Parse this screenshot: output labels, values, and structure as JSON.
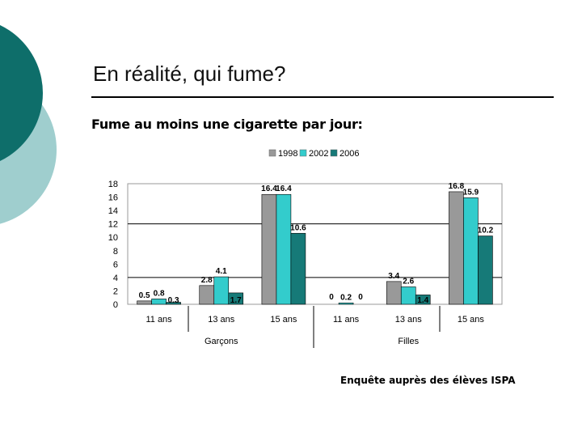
{
  "slide": {
    "title": "En réalité, qui fume?",
    "subtitle": "Fume au moins une cigarette par jour:",
    "source": "Enquête auprès des élèves ISPA"
  },
  "colors": {
    "decor_dark": "#0E6E6A",
    "decor_light": "#9FCECE"
  },
  "chart_data": {
    "type": "bar",
    "categories": [
      "11 ans",
      "13 ans",
      "15 ans",
      "11 ans",
      "13 ans",
      "15 ans"
    ],
    "groups": [
      {
        "label": "Garçons",
        "categories": [
          0,
          1,
          2
        ]
      },
      {
        "label": "Filles",
        "categories": [
          3,
          4,
          5
        ]
      }
    ],
    "series": [
      {
        "name": "1998",
        "color": "#999999",
        "values": [
          0.5,
          2.8,
          16.4,
          0,
          3.4,
          16.8
        ]
      },
      {
        "name": "2002",
        "color": "#33CCCC",
        "values": [
          0.8,
          4.1,
          16.4,
          0.2,
          2.6,
          15.9
        ]
      },
      {
        "name": "2006",
        "color": "#167A78",
        "values": [
          0.3,
          1.7,
          10.6,
          0,
          1.4,
          10.2
        ]
      }
    ],
    "yticks": [
      0,
      2,
      4,
      6,
      8,
      10,
      12,
      14,
      16,
      18
    ],
    "ylim": [
      0,
      18
    ],
    "grid_values": [
      12,
      4
    ],
    "legend_position": "top",
    "title": "",
    "xlabel": "",
    "ylabel": ""
  }
}
